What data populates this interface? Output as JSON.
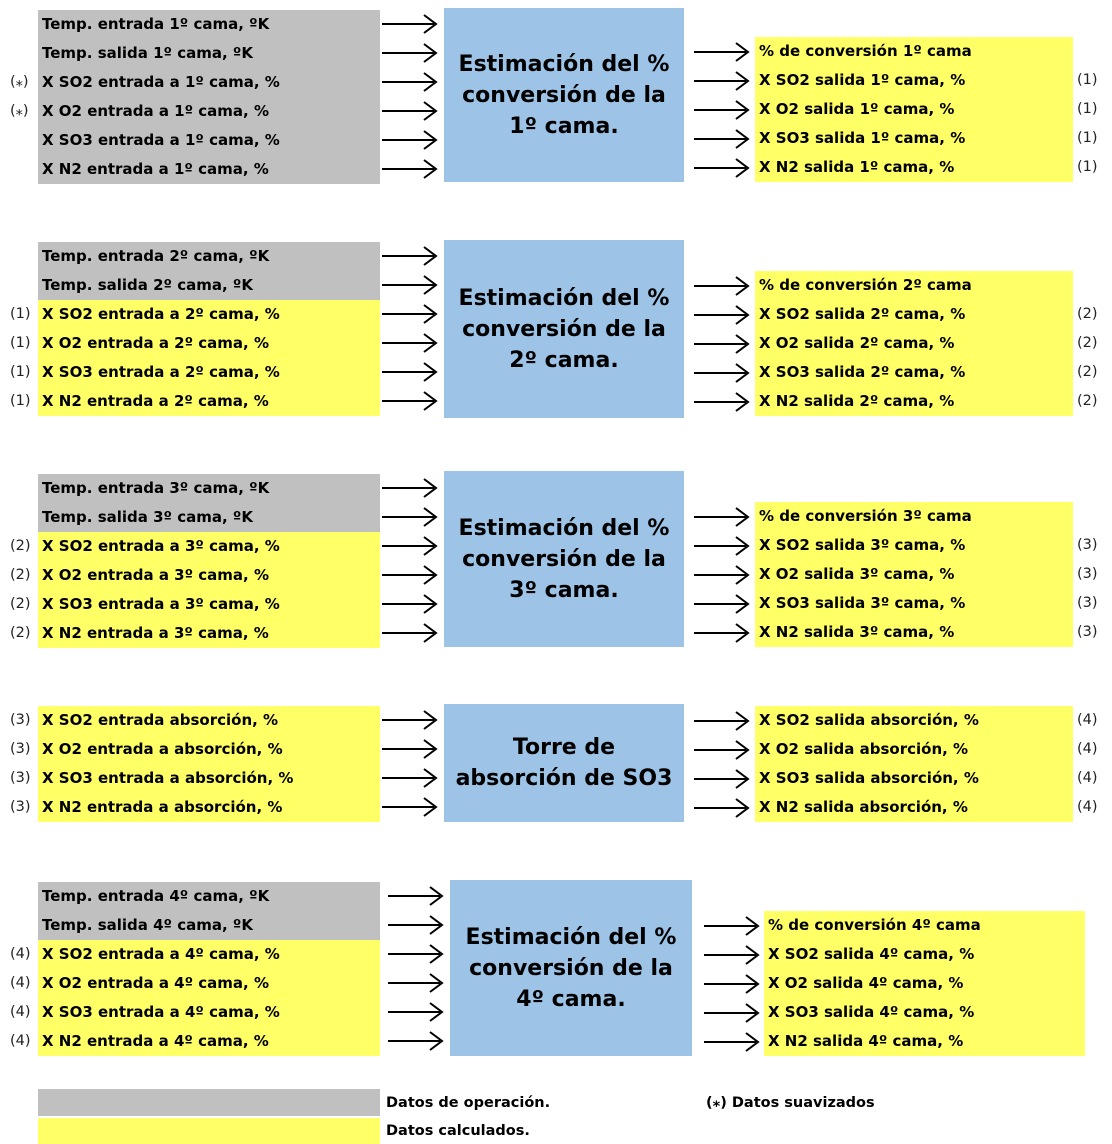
{
  "stages": [
    {
      "model": [
        "Estimación del %",
        "conversión de la",
        "1º cama."
      ],
      "inputs": [
        {
          "text": "Temp. entrada 1º cama, ºK",
          "note": "",
          "kind": "operation"
        },
        {
          "text": "Temp. salida 1º cama, ºK",
          "note": "",
          "kind": "operation"
        },
        {
          "text": "X SO2 entrada a 1º cama, %",
          "note": "(⁎)",
          "kind": "operation"
        },
        {
          "text": "X O2 entrada a 1º cama, %",
          "note": "(⁎)",
          "kind": "operation"
        },
        {
          "text": "X SO3 entrada a 1º cama, %",
          "note": "",
          "kind": "operation"
        },
        {
          "text": "X N2 entrada a 1º cama, %",
          "note": "",
          "kind": "operation"
        }
      ],
      "outputs": [
        {
          "text": "% de conversión 1º cama",
          "note": ""
        },
        {
          "text": "X SO2 salida 1º cama, %",
          "note": "(1)"
        },
        {
          "text": "X O2 salida 1º cama, %",
          "note": "(1)"
        },
        {
          "text": "X SO3 salida 1º cama, %",
          "note": "(1)"
        },
        {
          "text": "X N2 salida 1º cama, %",
          "note": "(1)"
        }
      ]
    },
    {
      "model": [
        "Estimación del %",
        "conversión de la",
        "2º cama."
      ],
      "inputs": [
        {
          "text": "Temp. entrada 2º cama, ºK",
          "note": "",
          "kind": "operation"
        },
        {
          "text": "Temp. salida 2º cama, ºK",
          "note": "",
          "kind": "operation"
        },
        {
          "text": "X SO2 entrada a 2º cama, %",
          "note": "(1)",
          "kind": "calculated"
        },
        {
          "text": "X O2 entrada a 2º cama, %",
          "note": "(1)",
          "kind": "calculated"
        },
        {
          "text": "X SO3 entrada a 2º cama, %",
          "note": "(1)",
          "kind": "calculated"
        },
        {
          "text": "X N2 entrada a 2º cama, %",
          "note": "(1)",
          "kind": "calculated"
        }
      ],
      "outputs": [
        {
          "text": "% de conversión 2º cama",
          "note": ""
        },
        {
          "text": "X SO2 salida 2º cama, %",
          "note": "(2)"
        },
        {
          "text": "X O2 salida 2º cama, %",
          "note": "(2)"
        },
        {
          "text": "X SO3 salida 2º cama, %",
          "note": "(2)"
        },
        {
          "text": "X N2 salida 2º cama, %",
          "note": "(2)"
        }
      ]
    },
    {
      "model": [
        "Estimación del %",
        "conversión de la",
        "3º cama."
      ],
      "inputs": [
        {
          "text": "Temp. entrada 3º cama, ºK",
          "note": "",
          "kind": "operation"
        },
        {
          "text": "Temp. salida 3º cama, ºK",
          "note": "",
          "kind": "operation"
        },
        {
          "text": "X SO2 entrada a 3º cama, %",
          "note": "(2)",
          "kind": "calculated"
        },
        {
          "text": "X O2 entrada a 3º cama, %",
          "note": "(2)",
          "kind": "calculated"
        },
        {
          "text": "X SO3 entrada a 3º cama, %",
          "note": "(2)",
          "kind": "calculated"
        },
        {
          "text": "X N2 entrada a 3º cama, %",
          "note": "(2)",
          "kind": "calculated"
        }
      ],
      "outputs": [
        {
          "text": "% de conversión 3º cama",
          "note": ""
        },
        {
          "text": "X SO2 salida 3º cama, %",
          "note": "(3)"
        },
        {
          "text": "X O2 salida 3º cama, %",
          "note": "(3)"
        },
        {
          "text": "X SO3 salida 3º cama, %",
          "note": "(3)"
        },
        {
          "text": "X N2 salida 3º cama, %",
          "note": "(3)"
        }
      ]
    },
    {
      "model": [
        "Torre de",
        "absorción de SO3"
      ],
      "inputs": [
        {
          "text": "X SO2 entrada absorción, %",
          "note": "(3)",
          "kind": "calculated"
        },
        {
          "text": "X O2 entrada a absorción, %",
          "note": "(3)",
          "kind": "calculated"
        },
        {
          "text": "X SO3 entrada a absorción, %",
          "note": "(3)",
          "kind": "calculated"
        },
        {
          "text": "X N2 entrada a absorción, %",
          "note": "(3)",
          "kind": "calculated"
        }
      ],
      "outputs": [
        {
          "text": "X SO2 salida absorción, %",
          "note": "(4)"
        },
        {
          "text": "X O2 salida absorción, %",
          "note": "(4)"
        },
        {
          "text": "X SO3 salida absorción, %",
          "note": "(4)"
        },
        {
          "text": "X N2 salida absorción, %",
          "note": "(4)"
        }
      ]
    },
    {
      "model": [
        "Estimación del %",
        "conversión de la",
        "4º cama."
      ],
      "inputs": [
        {
          "text": "Temp. entrada 4º cama, ºK",
          "note": "",
          "kind": "operation"
        },
        {
          "text": "Temp. salida 4º cama, ºK",
          "note": "",
          "kind": "operation"
        },
        {
          "text": "X SO2 entrada a 4º cama, %",
          "note": "(4)",
          "kind": "calculated"
        },
        {
          "text": "X O2 entrada a 4º cama, %",
          "note": "(4)",
          "kind": "calculated"
        },
        {
          "text": "X SO3 entrada a 4º cama, %",
          "note": "(4)",
          "kind": "calculated"
        },
        {
          "text": "X N2 entrada a 4º cama, %",
          "note": "(4)",
          "kind": "calculated"
        }
      ],
      "outputs": [
        {
          "text": "% de conversión 4º cama",
          "note": ""
        },
        {
          "text": "X SO2 salida 4º cama, %",
          "note": ""
        },
        {
          "text": "X O2 salida 4º cama, %",
          "note": ""
        },
        {
          "text": "X SO3 salida 4º cama, %",
          "note": ""
        },
        {
          "text": "X N2 salida 4º cama, %",
          "note": ""
        }
      ]
    }
  ],
  "legend": {
    "operation_label": "Datos de operación.",
    "calculated_label": "Datos calculados.",
    "smoothed_label": "(⁎) Datos suavizados"
  },
  "colors": {
    "operation": "#c0c0c0",
    "calculated": "#ffff66",
    "model": "#9dc3e6"
  }
}
